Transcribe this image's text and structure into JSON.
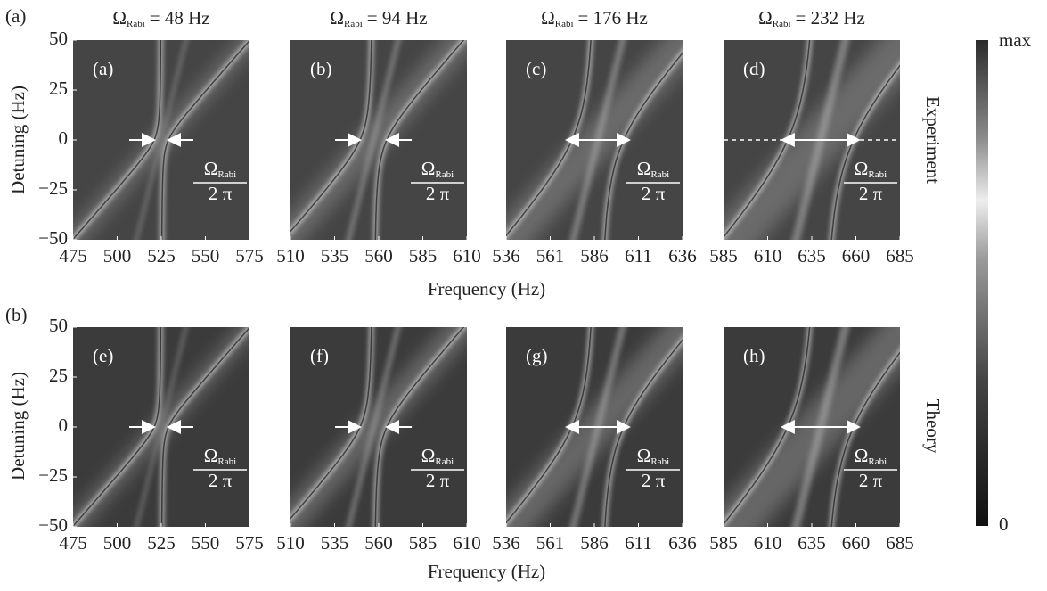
{
  "figure": {
    "row_labels": [
      "(a)",
      "(b)"
    ],
    "row_titles": [
      "Experiment",
      "Theory"
    ],
    "x_labels": [
      "Frequency (Hz)",
      "Frequency (Hz)"
    ],
    "y_labels": [
      "Detuning (Hz)",
      "Detuning (Hz)"
    ],
    "column_titles": [
      {
        "symbol": "Ω",
        "subscript": "Rabi",
        "text": "= 48 Hz"
      },
      {
        "symbol": "Ω",
        "subscript": "Rabi",
        "text": "= 94 Hz"
      },
      {
        "symbol": "Ω",
        "subscript": "Rabi",
        "text": "= 176 Hz"
      },
      {
        "symbol": "Ω",
        "subscript": "Rabi",
        "text": "= 232 Hz"
      }
    ],
    "colorbar": {
      "max_label": "max",
      "min_label": "0"
    }
  },
  "chart_data": [
    {
      "type": "heatmap",
      "panel_label": "(a)",
      "fraction": {
        "numerator": "Ω",
        "subscript": "Rabi",
        "denominator": "2 π"
      },
      "xlim": [
        475,
        575
      ],
      "xticks": [
        475,
        500,
        525,
        550,
        575
      ],
      "ylim": [
        -50,
        50
      ],
      "yticks": [
        {
          "value": -50,
          "label": "−50"
        },
        {
          "value": -25,
          "label": "−25"
        },
        0,
        25,
        50
      ]
    },
    {
      "type": "heatmap",
      "panel_label": "(b)",
      "fraction": {
        "numerator": "Ω",
        "subscript": "Rabi",
        "denominator": "2 π"
      },
      "xlim": [
        510,
        610
      ],
      "xticks": [
        510,
        535,
        560,
        585,
        610
      ],
      "ylim": [
        -50,
        50
      ]
    },
    {
      "type": "heatmap",
      "panel_label": "(c)",
      "fraction": {
        "numerator": "Ω",
        "subscript": "Rabi",
        "denominator": "2 π"
      },
      "xlim": [
        536,
        636
      ],
      "xticks": [
        536,
        561,
        586,
        611,
        636
      ],
      "ylim": [
        -50,
        50
      ]
    },
    {
      "type": "heatmap",
      "panel_label": "(d)",
      "fraction": {
        "numerator": "Ω",
        "subscript": "Rabi",
        "denominator": "2 π"
      },
      "xlim": [
        585,
        685
      ],
      "xticks": [
        585,
        610,
        635,
        660,
        685
      ],
      "ylim": [
        -50,
        50
      ]
    },
    {
      "type": "heatmap",
      "panel_label": "(e)",
      "fraction": {
        "numerator": "Ω",
        "subscript": "Rabi",
        "denominator": "2 π"
      },
      "xlim": [
        475,
        575
      ],
      "xticks": [
        475,
        500,
        525,
        550,
        575
      ],
      "ylim": [
        -50,
        50
      ],
      "yticks": [
        {
          "value": -50,
          "label": "−50"
        },
        {
          "value": -25,
          "label": "−25"
        },
        0,
        25,
        50
      ]
    },
    {
      "type": "heatmap",
      "panel_label": "(f)",
      "fraction": {
        "numerator": "Ω",
        "subscript": "Rabi",
        "denominator": "2 π"
      },
      "xlim": [
        510,
        610
      ],
      "xticks": [
        510,
        535,
        560,
        585,
        610
      ],
      "ylim": [
        -50,
        50
      ]
    },
    {
      "type": "heatmap",
      "panel_label": "(g)",
      "fraction": {
        "numerator": "Ω",
        "subscript": "Rabi",
        "denominator": "2 π"
      },
      "xlim": [
        536,
        636
      ],
      "xticks": [
        536,
        561,
        586,
        611,
        636
      ],
      "ylim": [
        -50,
        50
      ]
    },
    {
      "type": "heatmap",
      "panel_label": "(h)",
      "fraction": {
        "numerator": "Ω",
        "subscript": "Rabi",
        "denominator": "2 π"
      },
      "xlim": [
        585,
        685
      ],
      "xticks": [
        585,
        610,
        635,
        660,
        685
      ],
      "ylim": [
        -50,
        50
      ]
    }
  ]
}
